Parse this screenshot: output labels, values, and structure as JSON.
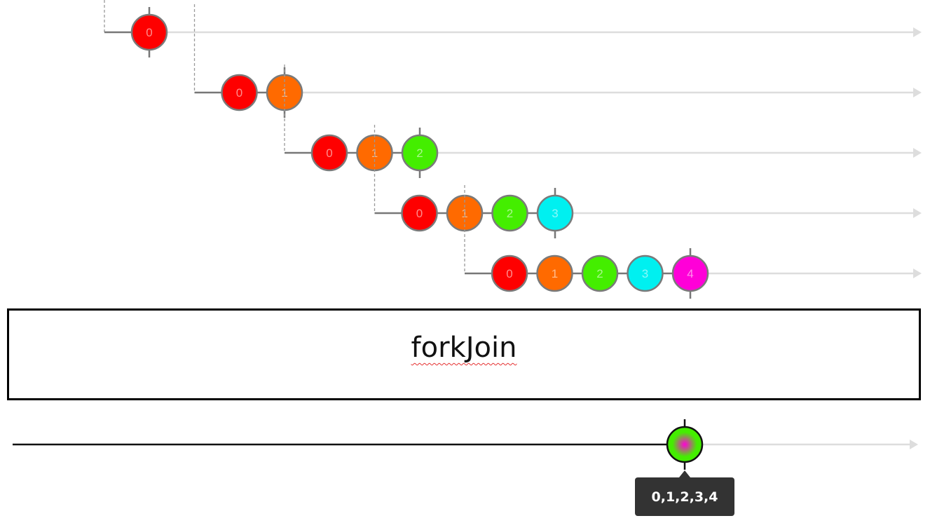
{
  "operator": {
    "name": "forkJoin"
  },
  "colors": {
    "0": "#fe0000",
    "1": "#ff6a00",
    "2": "#44ee00",
    "3": "#00f0f0",
    "4": "#ff00d8",
    "stroke": "#7a7a7a",
    "timeline": "#dddddd",
    "output_active": "#111111",
    "tooltip_bg": "#333333"
  },
  "input_streams": [
    {
      "values": [
        "0"
      ]
    },
    {
      "values": [
        "0",
        "1"
      ]
    },
    {
      "values": [
        "0",
        "1",
        "2"
      ]
    },
    {
      "values": [
        "0",
        "1",
        "2",
        "3"
      ]
    },
    {
      "values": [
        "0",
        "1",
        "2",
        "3",
        "4"
      ]
    }
  ],
  "output": {
    "marble_colors": [
      "2",
      "4"
    ],
    "tooltip": "0,1,2,3,4"
  }
}
